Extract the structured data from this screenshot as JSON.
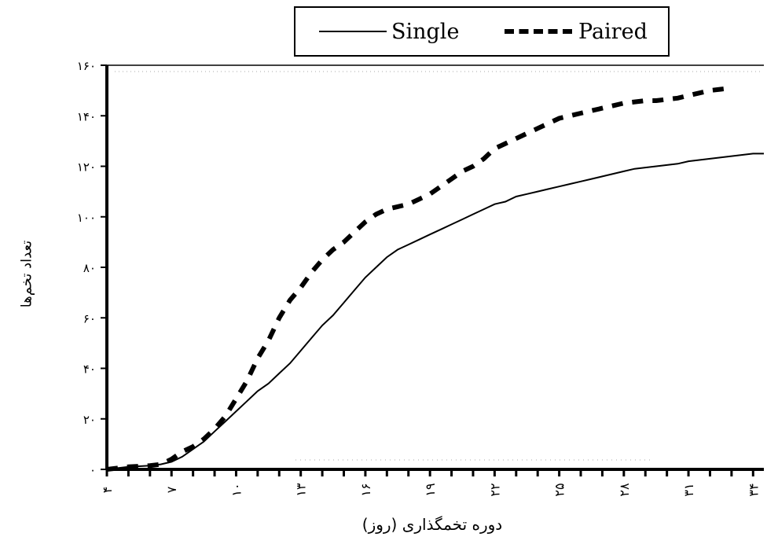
{
  "chart_data": {
    "type": "line",
    "title": "",
    "xlabel": "دوره تخمگذاری (روز)",
    "ylabel": "تعداد تخم‌ها",
    "x_ticks": [
      "۴",
      "۷",
      "۱۰",
      "۱۳",
      "۱۶",
      "۱۹",
      "۲۲",
      "۲۵",
      "۲۸",
      "۳۱",
      "۳۴"
    ],
    "y_ticks": [
      "۰",
      "۲۰",
      "۴۰",
      "۶۰",
      "۸۰",
      "۱۰۰",
      "۱۲۰",
      "۱۴۰",
      "۱۶۰"
    ],
    "xlim": [
      4,
      34.5
    ],
    "ylim": [
      0,
      160
    ],
    "legend_position": "top",
    "series": [
      {
        "name": "Single",
        "style": "solid",
        "x": [
          4,
          5,
          6,
          6.5,
          7,
          7.5,
          8,
          8.5,
          9,
          9.5,
          10,
          10.5,
          11,
          11.5,
          12,
          12.5,
          13,
          13.5,
          14,
          14.5,
          15,
          15.5,
          16,
          16.5,
          17,
          17.5,
          18,
          18.5,
          19,
          19.5,
          20,
          20.5,
          21,
          21.5,
          22,
          22.5,
          23,
          23.5,
          24,
          24.5,
          25,
          25.5,
          26,
          26.5,
          27,
          27.5,
          28,
          28.5,
          29,
          29.5,
          30,
          30.5,
          31,
          31.5,
          32,
          32.5,
          33,
          33.5,
          34,
          34.5
        ],
        "values": [
          0,
          1,
          1.5,
          2,
          3,
          5,
          8,
          11,
          15,
          19,
          23,
          27,
          31,
          34,
          38,
          42,
          47,
          52,
          57,
          61,
          66,
          71,
          76,
          80,
          84,
          87,
          89,
          91,
          93,
          95,
          97,
          99,
          101,
          103,
          105,
          106,
          108,
          109,
          110,
          111,
          112,
          113,
          114,
          115,
          116,
          117,
          118,
          119,
          119.5,
          120,
          120.5,
          121,
          122,
          122.5,
          123,
          123.5,
          124,
          124.5,
          125,
          125
        ]
      },
      {
        "name": "Paired",
        "style": "dashed",
        "x": [
          4,
          5,
          6,
          6.5,
          7,
          7.5,
          8,
          8.5,
          9,
          9.5,
          10,
          10.5,
          11,
          11.5,
          12,
          12.5,
          13,
          13.5,
          14,
          14.5,
          15,
          15.5,
          16,
          16.5,
          17,
          17.5,
          18,
          18.5,
          19,
          19.5,
          20,
          20.5,
          21,
          21.5,
          22,
          22.5,
          23,
          23.5,
          24,
          24.5,
          25,
          25.5,
          26,
          26.5,
          27,
          27.5,
          28,
          28.5,
          29,
          29.5,
          30,
          30.5,
          31,
          31.5,
          32,
          32.5,
          33
        ],
        "values": [
          0,
          1,
          1.5,
          2,
          4,
          7,
          9,
          12,
          16,
          21,
          28,
          35,
          44,
          51,
          60,
          67,
          72,
          78,
          83,
          87,
          90,
          94,
          98,
          101,
          103,
          104,
          105,
          107,
          109,
          112,
          115,
          118,
          120,
          123,
          127,
          129,
          131,
          133,
          135,
          137,
          139,
          140,
          141,
          142,
          143,
          144,
          145,
          145.5,
          146,
          146,
          146.5,
          147,
          148,
          149,
          150,
          150.5,
          151
        ]
      }
    ]
  },
  "legend": {
    "single_label": "Single",
    "paired_label": "Paired"
  }
}
